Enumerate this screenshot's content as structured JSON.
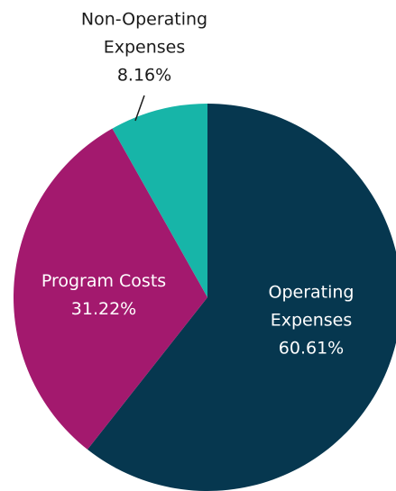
{
  "chart_data": {
    "type": "pie",
    "categories": [
      "Operating Expenses",
      "Program Costs",
      "Non-Operating Expenses"
    ],
    "values": [
      60.61,
      31.22,
      8.16
    ],
    "value_labels": [
      "60.61%",
      "31.22%",
      "8.16%"
    ],
    "colors": [
      "#06374f",
      "#a3196e",
      "#17b5a8"
    ]
  }
}
